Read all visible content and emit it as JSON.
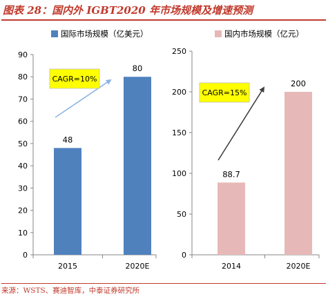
{
  "figure": {
    "title": "图表 28：国内外 IGBT2020 年市场规模及增速预测",
    "source": "来源：WSTS、赛迪智库，中泰证券研究所"
  },
  "chart_data": [
    {
      "type": "bar",
      "legend": "国际市场规模（亿美元）",
      "categories": [
        "2015",
        "2020E"
      ],
      "values": [
        48,
        80
      ],
      "value_labels": [
        "48",
        "80"
      ],
      "ylim": [
        0,
        90
      ],
      "yticks": [
        "0",
        "10",
        "20",
        "30",
        "40",
        "50",
        "60",
        "70",
        "80",
        "90"
      ],
      "annotation": "CAGR=10%",
      "color": "#4f81bd",
      "grid": false,
      "legend_position": "top"
    },
    {
      "type": "bar",
      "legend": "国内市场规模（亿元）",
      "categories": [
        "2014",
        "2020E"
      ],
      "values": [
        88.7,
        200
      ],
      "value_labels": [
        "88.7",
        "200"
      ],
      "ylim": [
        0,
        250
      ],
      "yticks": [
        "0",
        "50",
        "100",
        "150",
        "200",
        "250"
      ],
      "annotation": "CAGR=15%",
      "color": "#e6b9b8",
      "grid": false,
      "legend_position": "top"
    }
  ],
  "colors": {
    "accent": "#c0392b",
    "annotation_box": "#ffff00",
    "arrow_left": "#8eb4e3",
    "arrow_right": "#404040"
  }
}
